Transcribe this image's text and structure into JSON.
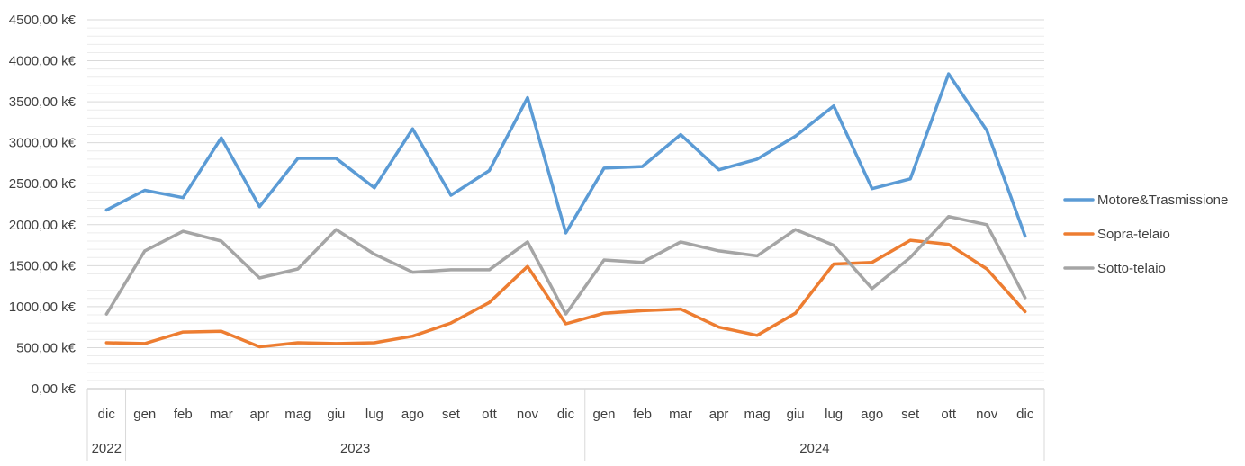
{
  "chart_data": {
    "type": "line",
    "title": "",
    "xlabel": "",
    "ylabel": "",
    "ylim": [
      0,
      4500
    ],
    "y_major_step": 500,
    "y_minor_step": 100,
    "y_tick_labels": [
      "0,00 k€",
      "500,00 k€",
      "1000,00 k€",
      "1500,00 k€",
      "2000,00 k€",
      "2500,00 k€",
      "3000,00 k€",
      "3500,00 k€",
      "4000,00 k€",
      "4500,00 k€"
    ],
    "grid": true,
    "legend_position": "right",
    "categories": [
      "dic",
      "gen",
      "feb",
      "mar",
      "apr",
      "mag",
      "giu",
      "lug",
      "ago",
      "set",
      "ott",
      "nov",
      "dic",
      "gen",
      "feb",
      "mar",
      "apr",
      "mag",
      "giu",
      "lug",
      "ago",
      "set",
      "ott",
      "nov",
      "dic"
    ],
    "year_groups": [
      {
        "label": "2022",
        "count": 1
      },
      {
        "label": "2023",
        "count": 12
      },
      {
        "label": "2024",
        "count": 12
      }
    ],
    "series": [
      {
        "name": "Motore&Trasmissione",
        "color": "#5B9BD5",
        "values": [
          2180,
          2420,
          2330,
          3060,
          2220,
          2810,
          2810,
          2450,
          3170,
          2360,
          2660,
          3550,
          1900,
          2690,
          2710,
          3100,
          2670,
          2800,
          3080,
          3450,
          2440,
          2560,
          3840,
          3150,
          1860
        ]
      },
      {
        "name": "Sopra-telaio",
        "color": "#ED7D31",
        "values": [
          560,
          550,
          690,
          700,
          510,
          560,
          550,
          560,
          640,
          800,
          1050,
          1490,
          790,
          920,
          950,
          970,
          750,
          650,
          920,
          1520,
          1540,
          1810,
          1760,
          1460,
          940
        ]
      },
      {
        "name": "Sotto-telaio",
        "color": "#A5A5A5",
        "values": [
          910,
          1680,
          1920,
          1800,
          1350,
          1460,
          1940,
          1640,
          1420,
          1450,
          1450,
          1790,
          910,
          1570,
          1540,
          1790,
          1680,
          1620,
          1940,
          1750,
          1220,
          1600,
          2100,
          2000,
          1110
        ]
      }
    ]
  }
}
